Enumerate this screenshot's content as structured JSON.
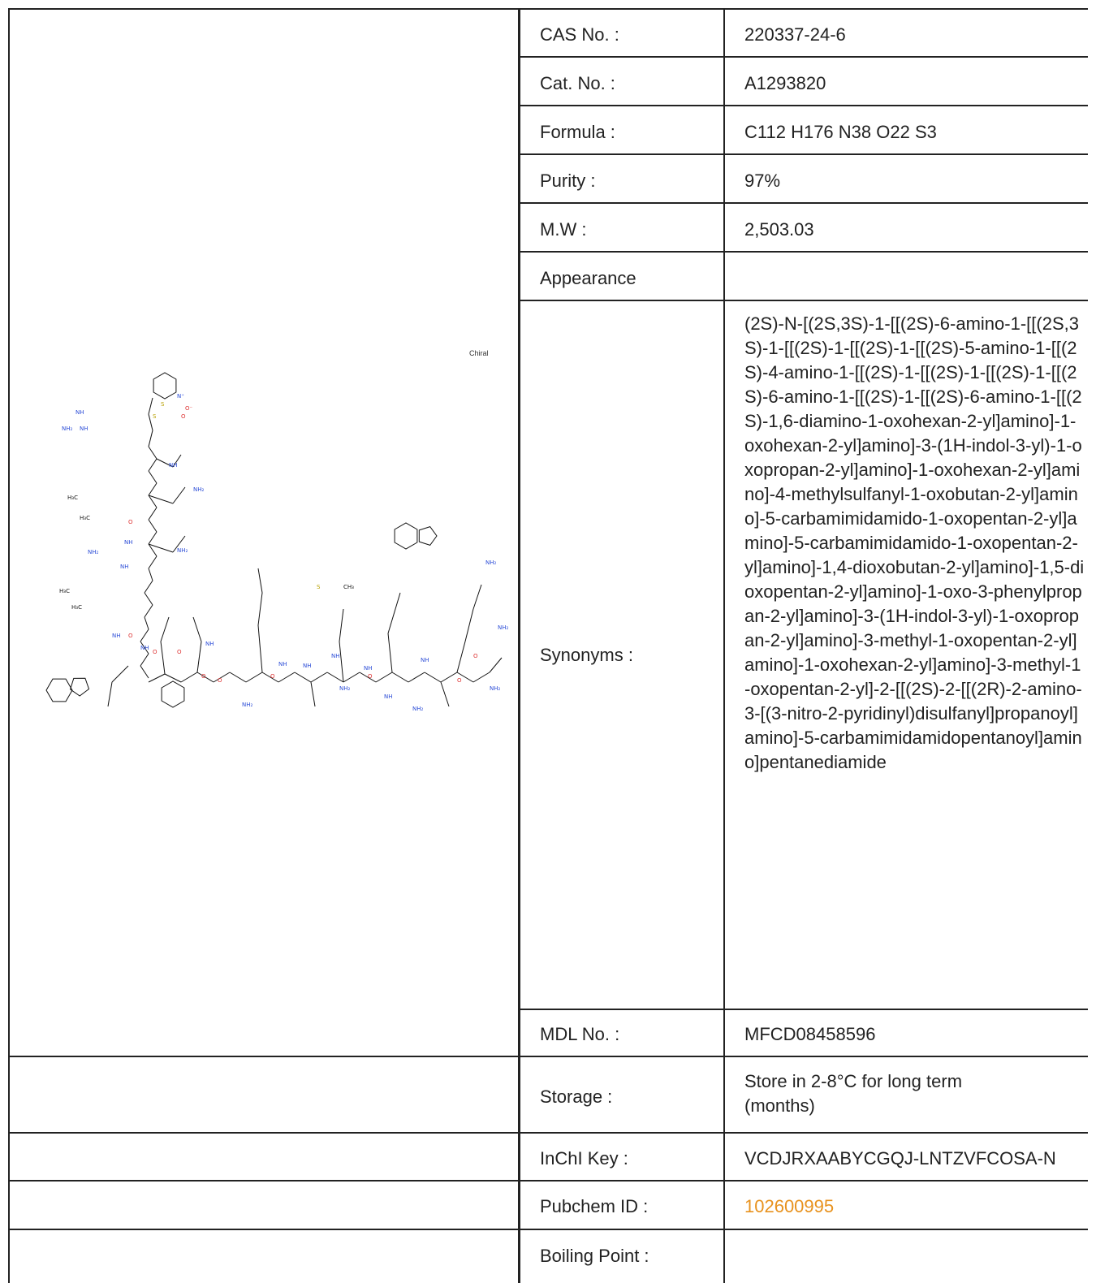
{
  "properties": [
    {
      "key": "cas",
      "label": "CAS No. :",
      "value": "220337-24-6"
    },
    {
      "key": "cat",
      "label": "Cat. No. :",
      "value": "A1293820"
    },
    {
      "key": "formula",
      "label": "Formula :",
      "value": "C112 H176 N38 O22 S3"
    },
    {
      "key": "purity",
      "label": "Purity :",
      "value": "97%"
    },
    {
      "key": "mw",
      "label": "M.W :",
      "value": "2,503.03"
    },
    {
      "key": "appearance",
      "label": "Appearance",
      "value": ""
    },
    {
      "key": "synonyms",
      "label": "Synonyms :",
      "value": "(2S)-N-[(2S,3S)-1-[[(2S)-6-amino-1-[[(2S,3S)-1-[[(2S)-1-[[(2S)-1-[[(2S)-5-amino-1-[[(2S)-4-amino-1-[[(2S)-1-[[(2S)-1-[[(2S)-1-[[(2S)-6-amino-1-[[(2S)-1-[[(2S)-6-amino-1-[[(2S)-1,6-diamino-1-oxohexan-2-yl]amino]-1-oxohexan-2-yl]amino]-3-(1H-indol-3-yl)-1-oxopropan-2-yl]amino]-1-oxohexan-2-yl]amino]-4-methylsulfanyl-1-oxobutan-2-yl]amino]-5-carbamimidamido-1-oxopentan-2-yl]amino]-5-carbamimidamido-1-oxopentan-2-yl]amino]-1,4-dioxobutan-2-yl]amino]-1,5-dioxopentan-2-yl]amino]-1-oxo-3-phenylpropan-2-yl]amino]-3-(1H-indol-3-yl)-1-oxopropan-2-yl]amino]-3-methyl-1-oxopentan-2-yl]amino]-1-oxohexan-2-yl]amino]-3-methyl-1-oxopentan-2-yl]-2-[[(2S)-2-[[(2R)-2-amino-3-[(3-nitro-2-pyridinyl)disulfanyl]propanoyl]amino]-5-carbamimidamidopentanoyl]amino]pentanediamide"
    },
    {
      "key": "mdl",
      "label": "MDL No. :",
      "value": "MFCD08458596"
    },
    {
      "key": "storage",
      "label": "Storage :",
      "value": "Store in 2-8°C for long term (months)"
    },
    {
      "key": "inchi",
      "label": "InChI Key :",
      "value": "VCDJRXAABYCGQJ-LNTZVFCOSA-N"
    },
    {
      "key": "pubchem",
      "label": "Pubchem ID :",
      "value": "102600995"
    },
    {
      "key": "boiling",
      "label": "Boiling Point :",
      "value": ""
    }
  ],
  "structure": {
    "chiral_label": "Chiral",
    "atoms": [
      "NH",
      "NH₂",
      "NH",
      "NH",
      "S",
      "S",
      "O",
      "N⁺",
      "O⁻",
      "NH₂",
      "H₃C",
      "H₃C",
      "NH₂",
      "O",
      "NH",
      "NH₂",
      "NH",
      "H₃C",
      "H₃C",
      "NH",
      "O",
      "O",
      "NH",
      "O",
      "O",
      "NH",
      "O",
      "NH₂",
      "O",
      "NH",
      "NH",
      "NH",
      "NH₂",
      "S",
      "CH₃",
      "O",
      "NH",
      "NH",
      "NH",
      "O",
      "O",
      "NH₂",
      "NH₂",
      "NH₂",
      "NH₂"
    ]
  }
}
